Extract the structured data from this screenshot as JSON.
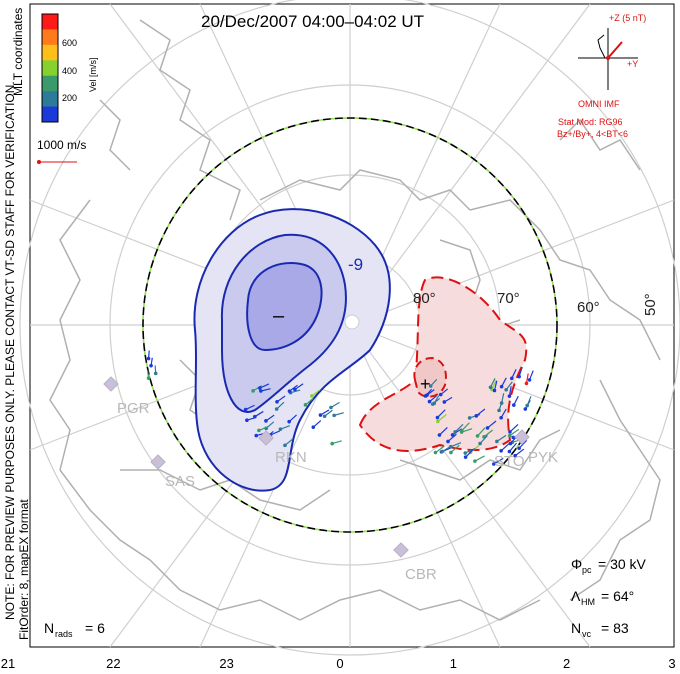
{
  "header": {
    "title": "20/Dec/2007 04:00–04:02 UT"
  },
  "side_note": {
    "line1": "NOTE: FOR PREVIEW PURPOSES ONLY. PLEASE CONTACT VT-SD STAFF FOR VERIFICATION.",
    "line2": "FitOrder: 8, mapEX format",
    "coords": "MLT coordinates"
  },
  "colorbar": {
    "label": "Vel [m/s]",
    "ticks": [
      "600",
      "400",
      "200"
    ],
    "colors": [
      "#ff1a1a",
      "#ff7a1a",
      "#ffbf1a",
      "#86d12e",
      "#3a9a6a",
      "#2e7a9a",
      "#1a3ad9"
    ]
  },
  "velocity_scale": {
    "label": "1000 m/s",
    "color": "#d11"
  },
  "imf": {
    "z_label": "+Z (5 nT)",
    "y_label": "+Y",
    "source": "OMNI IMF",
    "model_line1": "Stat Mod: RG96",
    "model_line2": "Bz+/By+, 4<BT<6",
    "color": "#d11"
  },
  "stats": {
    "phi_label": "Φ",
    "phi_sub": "pc",
    "phi_value": "= 30 kV",
    "lambda_label": "Λ",
    "lambda_sub": "HM",
    "lambda_value": "= 64°",
    "nvc_label": "N",
    "nvc_sub": "vc",
    "nvc_value": "= 83",
    "nrads_label": "N",
    "nrads_sub": "rads",
    "nrads_value": "= 6"
  },
  "radars": [
    "PGR",
    "RKN",
    "SAS",
    "PYK",
    "CBR",
    "STO"
  ],
  "latitude_labels": [
    "80°",
    "70°",
    "60°",
    "50°"
  ],
  "contour_label": "-9",
  "neg_marker": "–",
  "pos_marker": "+",
  "chart_data": {
    "type": "polar-convection-map",
    "title": "20/Dec/2007 04:00–04:02 UT",
    "x_axis_mlt": [
      "21",
      "22",
      "23",
      "0",
      "1",
      "2",
      "3"
    ],
    "latitude_rings_deg": [
      80,
      70,
      60,
      50
    ],
    "colorbar_range_ms": [
      0,
      700
    ],
    "cross_polar_cap_potential_kV": 30,
    "heppner_maynard_boundary_deg": 64,
    "n_vectors": 83,
    "n_radars": 6
  }
}
